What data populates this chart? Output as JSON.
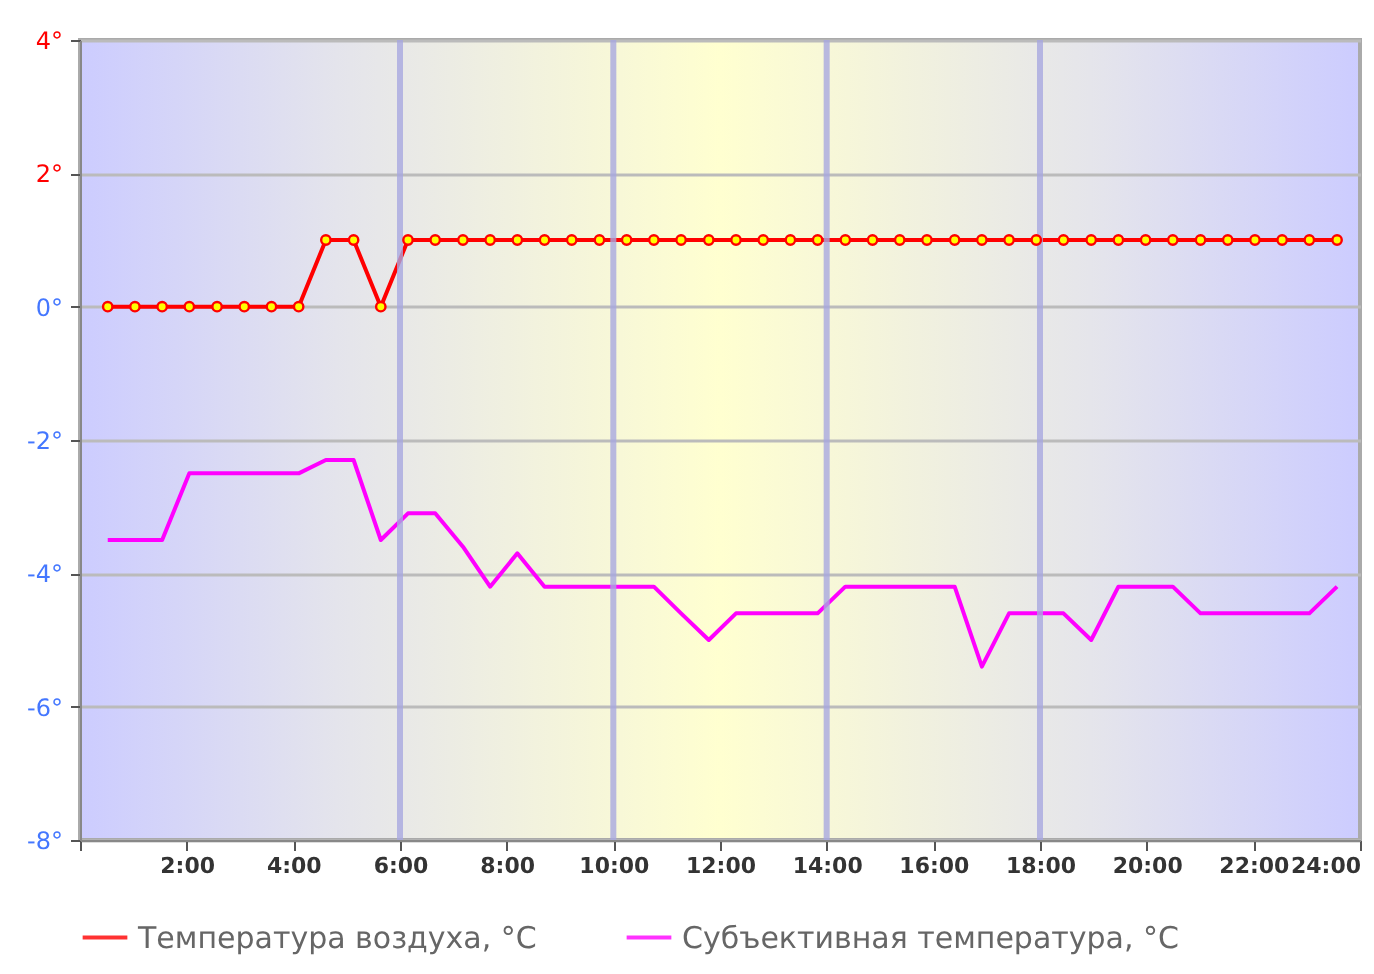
{
  "chart_data": {
    "type": "line",
    "x": [
      0.52,
      1.03,
      1.54,
      2.05,
      2.57,
      3.08,
      3.59,
      4.1,
      4.61,
      5.13,
      5.64,
      6.15,
      6.66,
      7.18,
      7.69,
      8.2,
      8.71,
      9.22,
      9.74,
      10.25,
      10.76,
      11.27,
      11.79,
      12.3,
      12.81,
      13.32,
      13.83,
      14.35,
      14.86,
      15.37,
      15.88,
      16.4,
      16.91,
      17.42,
      17.93,
      18.44,
      18.96,
      19.47,
      19.98,
      20.49,
      21.01,
      21.52,
      22.03,
      22.54,
      23.05,
      23.57
    ],
    "series": [
      {
        "name": "Температура воздуха, °C",
        "color": "#ff0000",
        "marker": "circle",
        "values": [
          0,
          0,
          0,
          0,
          0,
          0,
          0,
          0,
          1,
          1,
          0,
          1,
          1,
          1,
          1,
          1,
          1,
          1,
          1,
          1,
          1,
          1,
          1,
          1,
          1,
          1,
          1,
          1,
          1,
          1,
          1,
          1,
          1,
          1,
          1,
          1,
          1,
          1,
          1,
          1,
          1,
          1,
          1,
          1,
          1,
          1
        ]
      },
      {
        "name": "Субъективная температура, °C",
        "color": "#ff00ff",
        "marker": "none",
        "values": [
          -3.5,
          -3.5,
          -3.5,
          -2.5,
          -2.5,
          -2.5,
          -2.5,
          -2.5,
          -2.3,
          -2.3,
          -3.5,
          -3.1,
          -3.1,
          -3.6,
          -4.2,
          -3.7,
          -4.2,
          -4.2,
          -4.2,
          -4.2,
          -4.2,
          -4.6,
          -5.0,
          -4.6,
          -4.6,
          -4.6,
          -4.6,
          -4.2,
          -4.2,
          -4.2,
          -4.2,
          -4.2,
          -5.4,
          -4.6,
          -4.6,
          -4.6,
          -5.0,
          -4.2,
          -4.2,
          -4.2,
          -4.6,
          -4.6,
          -4.6,
          -4.6,
          -4.6,
          -4.2
        ]
      }
    ],
    "xlim": [
      0,
      24
    ],
    "xticks": [
      {
        "value": 0,
        "label": null
      },
      {
        "value": 2,
        "label": "2:00"
      },
      {
        "value": 4,
        "label": "4:00"
      },
      {
        "value": 6,
        "label": "6:00"
      },
      {
        "value": 8,
        "label": "8:00"
      },
      {
        "value": 10,
        "label": "10:00"
      },
      {
        "value": 12,
        "label": "12:00"
      },
      {
        "value": 14,
        "label": "14:00"
      },
      {
        "value": 16,
        "label": "16:00"
      },
      {
        "value": 18,
        "label": "18:00"
      },
      {
        "value": 20,
        "label": "20:00"
      },
      {
        "value": 22,
        "label": "22:00"
      },
      {
        "value": 24,
        "label": "24:00"
      }
    ],
    "ylim": [
      -8,
      4
    ],
    "yticks": [
      {
        "value": -8,
        "label": "-8°"
      },
      {
        "value": -6,
        "label": "-6°"
      },
      {
        "value": -4,
        "label": "-4°"
      },
      {
        "value": -2,
        "label": "-2°"
      },
      {
        "value": 0,
        "label": "0°"
      },
      {
        "value": 2,
        "label": "2°"
      },
      {
        "value": 4,
        "label": "4°"
      }
    ],
    "ref_lines": [
      {
        "axis": "x",
        "value": 6,
        "color": "#a8a8e0"
      },
      {
        "axis": "x",
        "value": 10,
        "color": "#a8a8e0"
      },
      {
        "axis": "x",
        "value": 14,
        "color": "#a8a8e0"
      },
      {
        "axis": "x",
        "value": 18,
        "color": "#a8a8e0"
      }
    ],
    "grid": "y",
    "legend": "bottom"
  }
}
